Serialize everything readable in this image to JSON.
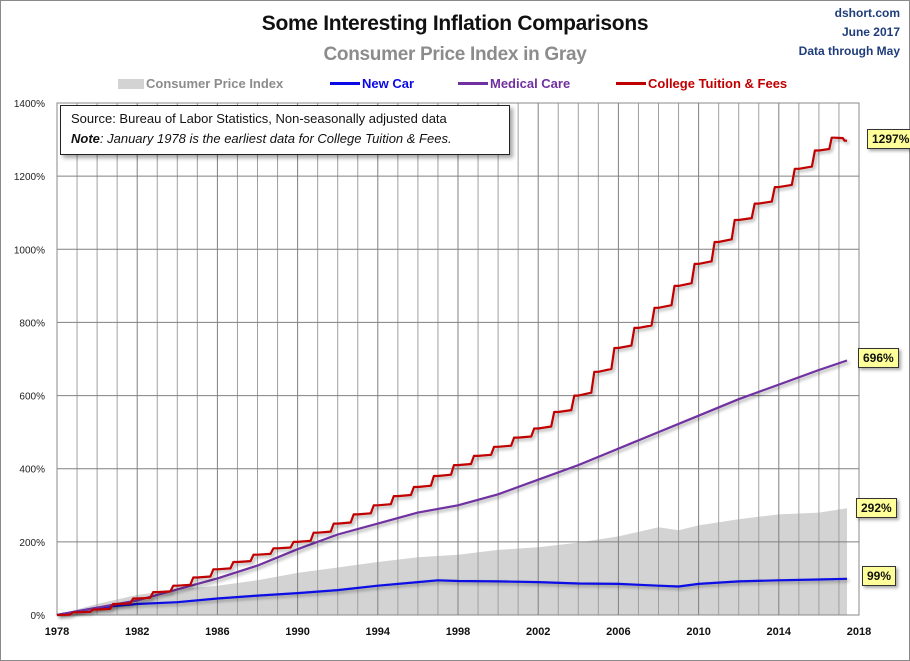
{
  "header": {
    "title": "Some Interesting Inflation Comparisons",
    "subtitle": "Consumer Price Index in Gray",
    "credit": [
      "dshort.com",
      "June 2017",
      "Data through May"
    ]
  },
  "note": {
    "source": "Source:  Bureau of Labor Statistics, Non-seasonally adjusted data",
    "note_label": "Note",
    "note_text": ": January  1978 is the earliest data for College Tuition & Fees."
  },
  "colors": {
    "cpi": "#d3d3d3",
    "new_car": "#0a0ae6",
    "medical": "#7030a0",
    "college": "#c00000",
    "grid": "#a0a0a0",
    "grid_major": "#808080",
    "tag_bg": "#ffff99"
  },
  "chart_data": {
    "type": "line",
    "title": "Some Interesting Inflation Comparisons",
    "subtitle": "Consumer Price Index in Gray",
    "xlabel": "",
    "ylabel": "",
    "xlim": [
      1978,
      2018
    ],
    "ylim": [
      0,
      1400
    ],
    "x_ticks": [
      "1978",
      "1982",
      "1986",
      "1990",
      "1994",
      "1998",
      "2002",
      "2006",
      "2010",
      "2014",
      "2018"
    ],
    "y_ticks": [
      "0%",
      "200%",
      "400%",
      "600%",
      "800%",
      "1000%",
      "1200%",
      "1400%"
    ],
    "grid": true,
    "legend_position": "top",
    "legend": [
      "Consumer Price Index",
      "New Car",
      "Medical Care",
      "College Tuition & Fees"
    ],
    "series": [
      {
        "name": "Consumer Price Index",
        "kind": "area",
        "end_label": "292%",
        "x": [
          1978,
          1980,
          1982,
          1984,
          1986,
          1988,
          1990,
          1992,
          1994,
          1996,
          1998,
          2000,
          2002,
          2004,
          2006,
          2008,
          2009,
          2010,
          2012,
          2014,
          2016,
          2017.4
        ],
        "values": [
          0,
          30,
          55,
          70,
          80,
          95,
          115,
          130,
          145,
          158,
          165,
          178,
          185,
          198,
          215,
          240,
          232,
          245,
          262,
          275,
          280,
          292
        ]
      },
      {
        "name": "New Car",
        "kind": "line",
        "end_label": "99%",
        "x": [
          1978,
          1980,
          1982,
          1984,
          1986,
          1988,
          1990,
          1992,
          1994,
          1996,
          1997,
          1998,
          2000,
          2002,
          2004,
          2006,
          2008,
          2009,
          2010,
          2012,
          2014,
          2016,
          2017.4
        ],
        "values": [
          0,
          20,
          30,
          35,
          45,
          53,
          60,
          68,
          80,
          90,
          95,
          93,
          92,
          90,
          86,
          85,
          80,
          78,
          85,
          92,
          95,
          97,
          99
        ]
      },
      {
        "name": "Medical Care",
        "kind": "line",
        "end_label": "696%",
        "x": [
          1978,
          1980,
          1982,
          1984,
          1986,
          1988,
          1990,
          1992,
          1994,
          1996,
          1998,
          2000,
          2002,
          2004,
          2006,
          2008,
          2010,
          2012,
          2014,
          2016,
          2017.4
        ],
        "values": [
          0,
          20,
          40,
          70,
          100,
          135,
          180,
          220,
          250,
          280,
          300,
          330,
          370,
          410,
          455,
          500,
          545,
          590,
          630,
          670,
          696
        ]
      },
      {
        "name": "College Tuition & Fees",
        "kind": "line",
        "end_label": "1297%",
        "x": [
          1978,
          1980,
          1982,
          1984,
          1986,
          1988,
          1990,
          1992,
          1994,
          1996,
          1998,
          2000,
          2002,
          2004,
          2006,
          2008,
          2010,
          2012,
          2014,
          2016,
          2016.8,
          2017.4
        ],
        "values": [
          0,
          15,
          45,
          80,
          125,
          165,
          200,
          250,
          300,
          350,
          410,
          460,
          510,
          600,
          730,
          840,
          960,
          1080,
          1170,
          1270,
          1305,
          1297
        ]
      }
    ]
  }
}
